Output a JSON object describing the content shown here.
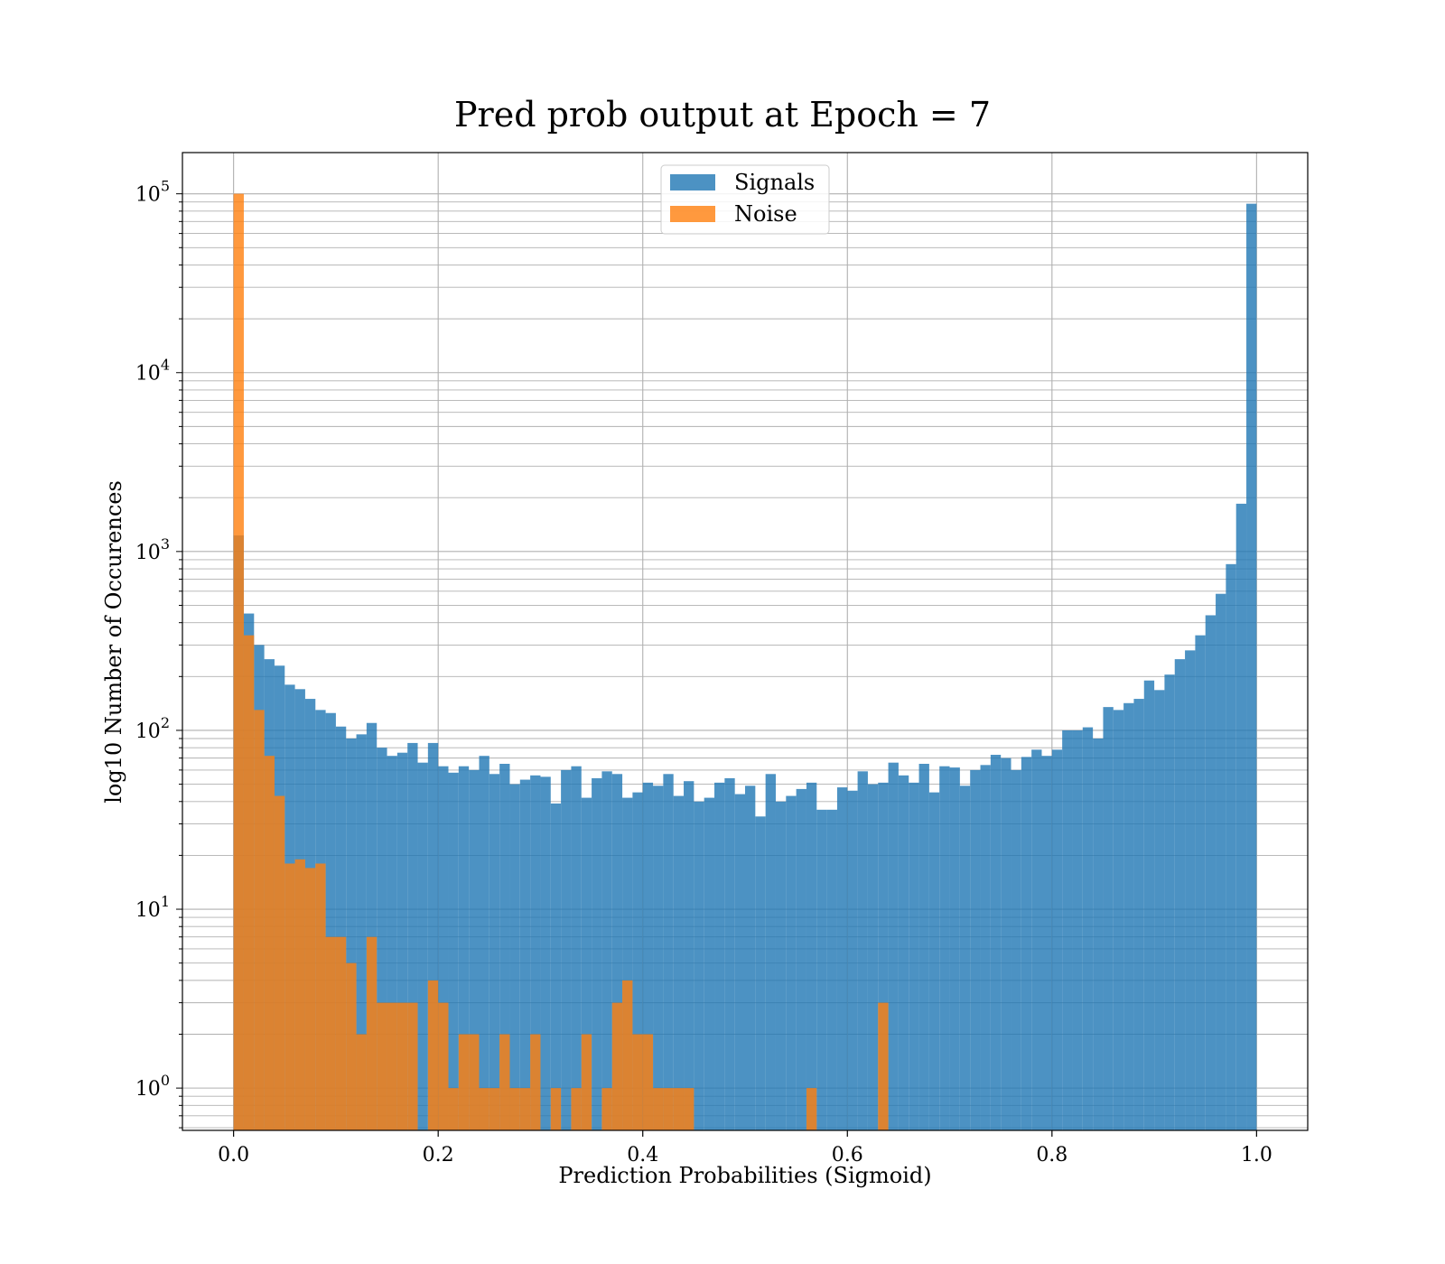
{
  "chart_data": {
    "type": "bar",
    "title": "Pred prob output at Epoch = 7",
    "xlabel": "Prediction Probabilities (Sigmoid)",
    "ylabel": "log10 Number of Occurences",
    "x_ticks": [
      "0.0",
      "0.2",
      "0.4",
      "0.6",
      "0.8",
      "1.0"
    ],
    "y_ticks": [
      {
        "base": "10",
        "exp": "0",
        "value": 1
      },
      {
        "base": "10",
        "exp": "1",
        "value": 10
      },
      {
        "base": "10",
        "exp": "2",
        "value": 100
      },
      {
        "base": "10",
        "exp": "3",
        "value": 1000
      },
      {
        "base": "10",
        "exp": "4",
        "value": 10000
      },
      {
        "base": "10",
        "exp": "5",
        "value": 100000
      }
    ],
    "y_scale": "log",
    "xlim": [
      -0.05,
      1.05
    ],
    "ylim": [
      0.58,
      170000
    ],
    "grid": true,
    "legend_position": "upper center",
    "bins": 100,
    "bin_range": [
      0,
      1
    ],
    "series": [
      {
        "name": "Signals",
        "color": "#1f77b4",
        "values": [
          1230,
          450,
          300,
          250,
          230,
          180,
          170,
          150,
          130,
          125,
          105,
          90,
          95,
          110,
          80,
          72,
          75,
          85,
          66,
          85,
          63,
          58,
          63,
          60,
          72,
          57,
          65,
          50,
          53,
          56,
          55,
          39,
          60,
          63,
          42,
          54,
          59,
          57,
          42,
          45,
          51,
          49,
          57,
          43,
          52,
          40,
          42,
          51,
          54,
          44,
          49,
          33,
          57,
          40,
          43,
          47,
          51,
          36,
          36,
          48,
          46,
          59,
          50,
          51,
          66,
          56,
          51,
          65,
          45,
          63,
          62,
          49,
          60,
          64,
          73,
          70,
          60,
          71,
          78,
          72,
          78,
          100,
          100,
          104,
          90,
          135,
          130,
          142,
          150,
          190,
          168,
          205,
          250,
          280,
          340,
          440,
          580,
          850,
          1850,
          88000
        ]
      },
      {
        "name": "Noise",
        "color": "#ff7f0e",
        "values": [
          100000,
          340,
          130,
          72,
          43,
          18,
          19,
          17,
          18,
          7,
          7,
          5,
          2,
          7,
          3,
          3,
          3,
          3,
          0,
          4,
          3,
          1,
          2,
          2,
          1,
          1,
          2,
          1,
          1,
          2,
          0,
          1,
          0,
          1,
          2,
          0,
          1,
          3,
          4,
          2,
          2,
          1,
          1,
          1,
          1,
          0,
          0,
          0,
          0,
          0,
          0,
          0,
          0,
          0,
          0,
          0,
          1,
          0,
          0,
          0,
          0,
          0,
          0,
          3,
          0,
          0,
          0,
          0,
          0,
          0,
          0,
          0,
          0,
          0,
          0,
          0,
          0,
          0,
          0,
          0,
          0,
          0,
          0,
          0,
          0,
          0,
          0,
          0,
          0,
          0,
          0,
          0,
          0,
          0,
          0,
          0,
          0,
          0,
          0,
          0
        ]
      }
    ]
  }
}
